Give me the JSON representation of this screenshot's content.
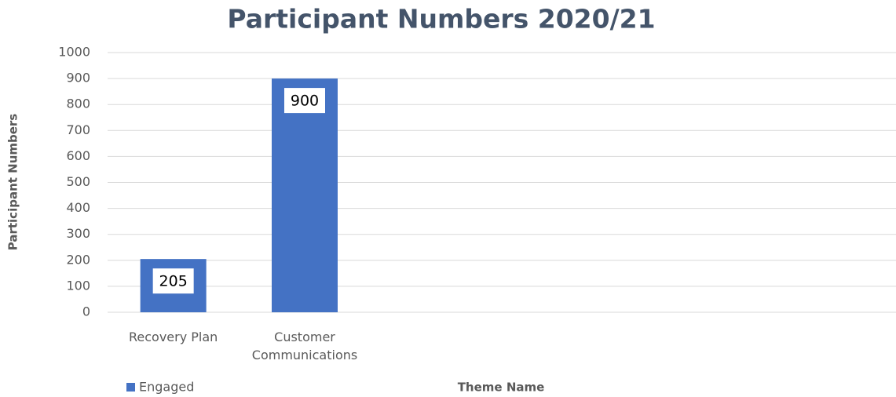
{
  "chart_data": {
    "type": "bar",
    "title": "Participant Numbers 2020/21",
    "y_label": "Participant Numbers",
    "x_label": "Theme Name",
    "categories": [
      "Recovery Plan",
      "Customer Communications",
      null,
      null,
      null,
      null
    ],
    "series": [
      {
        "name": "Engaged",
        "color": "#4472c4",
        "values": [
          205,
          900,
          null,
          null,
          null,
          null
        ]
      }
    ],
    "ylim": [
      0,
      1000
    ],
    "yticks": [
      0,
      100,
      200,
      300,
      400,
      500,
      600,
      700,
      800,
      900,
      1000
    ],
    "grid": true,
    "legend": "bottom-left"
  }
}
